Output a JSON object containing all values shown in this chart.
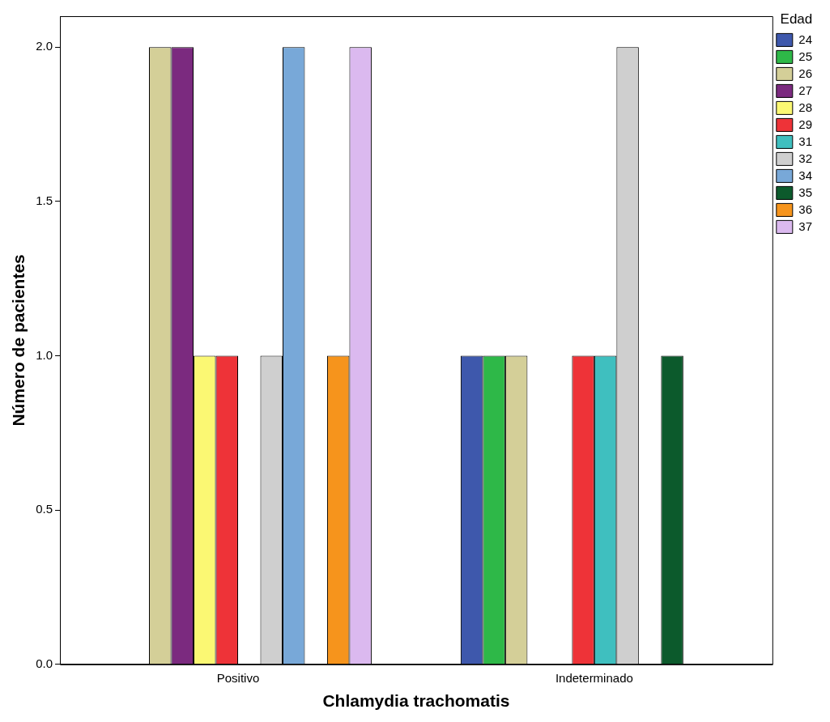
{
  "chart_data": {
    "type": "bar",
    "xlabel": "Chlamydia trachomatis",
    "ylabel": "Número de pacientes",
    "legend_title": "Edad",
    "legend": "right",
    "grid": false,
    "categories": [
      "Positivo",
      "Indeterminado"
    ],
    "ylim": [
      0,
      2.1
    ],
    "yticks": [
      {
        "value": 0,
        "label": "0.0"
      },
      {
        "value": 0.5,
        "label": "0.5"
      },
      {
        "value": 1,
        "label": "1.0"
      },
      {
        "value": 1.5,
        "label": "1.5"
      },
      {
        "value": 2,
        "label": "2.0"
      }
    ],
    "series": [
      {
        "name": "24",
        "color": "#3e58ac",
        "values": [
          null,
          1
        ]
      },
      {
        "name": "25",
        "color": "#2eb848",
        "values": [
          null,
          1
        ]
      },
      {
        "name": "26",
        "color": "#d4cf98",
        "values": [
          2,
          1
        ]
      },
      {
        "name": "27",
        "color": "#7b2a7f",
        "values": [
          2,
          null
        ]
      },
      {
        "name": "28",
        "color": "#fbf873",
        "values": [
          1,
          null
        ]
      },
      {
        "name": "29",
        "color": "#ee3338",
        "values": [
          1,
          1
        ]
      },
      {
        "name": "31",
        "color": "#3fbfbf",
        "values": [
          null,
          1
        ]
      },
      {
        "name": "32",
        "color": "#cfcfcf",
        "values": [
          1,
          2
        ]
      },
      {
        "name": "34",
        "color": "#78a8d8",
        "values": [
          2,
          null
        ]
      },
      {
        "name": "35",
        "color": "#0c5a2c",
        "values": [
          null,
          1
        ]
      },
      {
        "name": "36",
        "color": "#f6941c",
        "values": [
          1,
          null
        ]
      },
      {
        "name": "37",
        "color": "#dbb9ef",
        "values": [
          2,
          null
        ]
      }
    ]
  }
}
